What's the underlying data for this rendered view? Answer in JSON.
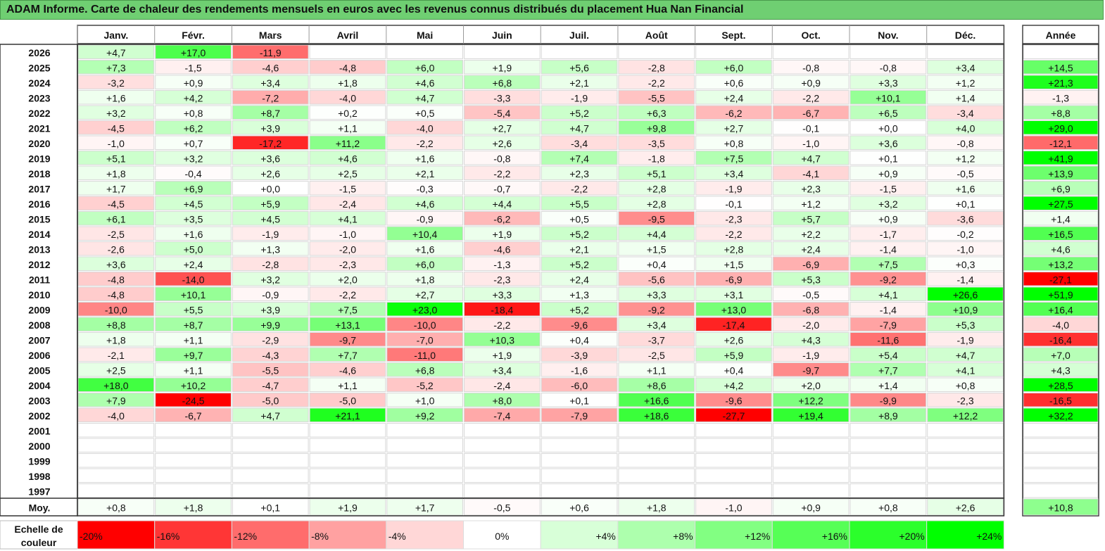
{
  "title": "ADAM Informe. Carte de chaleur des rendements mensuels en euros avec les revenus connus distribués du placement Hua Nan Financial",
  "chart_data": {
    "type": "heatmap",
    "title": "ADAM Informe. Carte de chaleur des rendements mensuels en euros avec les revenus connus distribués du placement Hua Nan Financial",
    "months": [
      "Janv.",
      "Févr.",
      "Mars",
      "Avril",
      "Mai",
      "Juin",
      "Juil.",
      "Août",
      "Sept.",
      "Oct.",
      "Nov.",
      "Déc."
    ],
    "year_header": "Année",
    "rows": [
      {
        "year": "2026",
        "values": [
          4.7,
          17.0,
          -11.9,
          null,
          null,
          null,
          null,
          null,
          null,
          null,
          null,
          null
        ],
        "annual": null
      },
      {
        "year": "2025",
        "values": [
          7.3,
          -1.5,
          -4.6,
          -4.8,
          6.0,
          1.9,
          5.6,
          -2.8,
          6.0,
          -0.8,
          -0.8,
          3.4
        ],
        "annual": 14.5
      },
      {
        "year": "2024",
        "values": [
          -3.2,
          0.9,
          3.4,
          1.8,
          4.6,
          6.8,
          2.1,
          -2.2,
          0.6,
          0.9,
          3.3,
          1.2
        ],
        "annual": 21.3
      },
      {
        "year": "2023",
        "values": [
          1.6,
          4.2,
          -7.2,
          -4.0,
          4.7,
          -3.3,
          -1.9,
          -5.5,
          2.4,
          -2.2,
          10.1,
          1.4
        ],
        "annual": -1.3
      },
      {
        "year": "2022",
        "values": [
          3.2,
          0.8,
          8.7,
          0.2,
          0.5,
          -5.4,
          5.2,
          6.3,
          -6.2,
          -6.7,
          6.5,
          -3.4
        ],
        "annual": 8.8
      },
      {
        "year": "2021",
        "values": [
          -4.5,
          6.2,
          3.9,
          1.1,
          -4.0,
          2.7,
          4.7,
          9.8,
          2.7,
          -0.1,
          0.0,
          4.0
        ],
        "annual": 29.0
      },
      {
        "year": "2020",
        "values": [
          -1.0,
          0.7,
          -17.2,
          11.2,
          -2.2,
          2.6,
          -3.4,
          -3.5,
          0.8,
          -1.0,
          3.6,
          -0.8
        ],
        "annual": -12.1
      },
      {
        "year": "2019",
        "values": [
          5.1,
          3.2,
          3.6,
          4.6,
          1.6,
          -0.8,
          7.4,
          -1.8,
          7.5,
          4.7,
          0.1,
          1.2
        ],
        "annual": 41.9
      },
      {
        "year": "2018",
        "values": [
          1.8,
          -0.4,
          2.6,
          2.5,
          2.1,
          -2.2,
          2.3,
          5.1,
          3.4,
          -4.1,
          0.9,
          -0.5
        ],
        "annual": 13.9
      },
      {
        "year": "2017",
        "values": [
          1.7,
          6.9,
          0.0,
          -1.5,
          -0.3,
          -0.7,
          -2.2,
          2.8,
          -1.9,
          2.3,
          -1.5,
          1.6
        ],
        "annual": 6.9
      },
      {
        "year": "2016",
        "values": [
          -4.5,
          4.5,
          5.9,
          -2.4,
          4.6,
          4.4,
          5.5,
          2.8,
          -0.1,
          1.2,
          3.2,
          0.1
        ],
        "annual": 27.5
      },
      {
        "year": "2015",
        "values": [
          6.1,
          3.5,
          4.5,
          4.1,
          -0.9,
          -6.2,
          0.5,
          -9.5,
          -2.3,
          5.7,
          0.9,
          -3.6
        ],
        "annual": 1.4
      },
      {
        "year": "2014",
        "values": [
          -2.5,
          1.6,
          -1.9,
          -1.0,
          10.4,
          1.9,
          5.2,
          4.4,
          -2.2,
          2.2,
          -1.7,
          -0.2
        ],
        "annual": 16.5
      },
      {
        "year": "2013",
        "values": [
          -2.6,
          5.0,
          1.3,
          -2.0,
          1.6,
          -4.6,
          2.1,
          1.5,
          2.8,
          2.4,
          -1.4,
          -1.0
        ],
        "annual": 4.6
      },
      {
        "year": "2012",
        "values": [
          3.6,
          2.4,
          -2.8,
          -2.3,
          6.0,
          -1.3,
          5.2,
          0.4,
          1.5,
          -6.9,
          7.5,
          0.3
        ],
        "annual": 13.2
      },
      {
        "year": "2011",
        "values": [
          -4.8,
          -14.0,
          3.2,
          2.0,
          1.8,
          -2.3,
          2.4,
          -5.6,
          -6.9,
          5.3,
          -9.2,
          -1.4
        ],
        "annual": -27.1
      },
      {
        "year": "2010",
        "values": [
          -4.8,
          10.1,
          -0.9,
          -2.2,
          2.7,
          3.3,
          1.3,
          3.3,
          3.1,
          -0.5,
          4.1,
          26.6
        ],
        "annual": 51.9
      },
      {
        "year": "2009",
        "values": [
          -10.0,
          5.5,
          3.9,
          7.5,
          23.0,
          -18.4,
          5.2,
          -9.2,
          13.0,
          -6.8,
          -1.4,
          10.9
        ],
        "annual": 16.4
      },
      {
        "year": "2008",
        "values": [
          8.8,
          8.7,
          9.9,
          13.1,
          -10.0,
          -2.2,
          -9.6,
          3.4,
          -17.4,
          -2.0,
          -7.9,
          5.3
        ],
        "annual": -4.0
      },
      {
        "year": "2007",
        "values": [
          1.8,
          1.1,
          -2.9,
          -9.7,
          -7.0,
          10.3,
          0.4,
          -3.7,
          2.6,
          4.3,
          -11.6,
          -1.9
        ],
        "annual": -16.4
      },
      {
        "year": "2006",
        "values": [
          -2.1,
          9.7,
          -4.3,
          7.7,
          -11.0,
          1.9,
          -3.9,
          -2.5,
          5.9,
          -1.9,
          5.4,
          4.7
        ],
        "annual": 7.0
      },
      {
        "year": "2005",
        "values": [
          2.5,
          1.1,
          -5.5,
          -4.6,
          6.8,
          3.4,
          -1.6,
          1.1,
          0.4,
          -9.7,
          7.7,
          4.1
        ],
        "annual": 4.3
      },
      {
        "year": "2004",
        "values": [
          18.0,
          10.2,
          -4.7,
          1.1,
          -5.2,
          -2.4,
          -6.0,
          8.6,
          4.2,
          2.0,
          1.4,
          0.8
        ],
        "annual": 28.5
      },
      {
        "year": "2003",
        "values": [
          7.9,
          -24.5,
          -5.0,
          -5.0,
          1.0,
          8.0,
          0.1,
          16.6,
          -9.6,
          12.2,
          -9.9,
          -2.3
        ],
        "annual": -16.5
      },
      {
        "year": "2002",
        "values": [
          -4.0,
          -6.7,
          4.7,
          21.1,
          9.2,
          -7.4,
          -7.9,
          18.6,
          -27.7,
          19.4,
          8.9,
          12.2
        ],
        "annual": 32.2
      },
      {
        "year": "2001",
        "values": [
          null,
          null,
          null,
          null,
          null,
          null,
          null,
          null,
          null,
          null,
          null,
          null
        ],
        "annual": null
      },
      {
        "year": "2000",
        "values": [
          null,
          null,
          null,
          null,
          null,
          null,
          null,
          null,
          null,
          null,
          null,
          null
        ],
        "annual": null
      },
      {
        "year": "1999",
        "values": [
          null,
          null,
          null,
          null,
          null,
          null,
          null,
          null,
          null,
          null,
          null,
          null
        ],
        "annual": null
      },
      {
        "year": "1998",
        "values": [
          null,
          null,
          null,
          null,
          null,
          null,
          null,
          null,
          null,
          null,
          null,
          null
        ],
        "annual": null
      },
      {
        "year": "1997",
        "values": [
          null,
          null,
          null,
          null,
          null,
          null,
          null,
          null,
          null,
          null,
          null,
          null
        ],
        "annual": null
      }
    ],
    "average": {
      "label": "Moy.",
      "values": [
        0.8,
        1.8,
        0.1,
        1.9,
        1.7,
        -0.5,
        0.6,
        1.8,
        -1.0,
        0.9,
        0.8,
        2.6
      ],
      "annual": 10.8
    },
    "scale": {
      "label_line1": "Echelle de",
      "label_line2": "couleur",
      "stops": [
        {
          "label": "-20%",
          "value": -20
        },
        {
          "label": "-16%",
          "value": -16
        },
        {
          "label": "-12%",
          "value": -12
        },
        {
          "label": "-8%",
          "value": -8
        },
        {
          "label": "-4%",
          "value": -4
        },
        {
          "label": "0%",
          "value": 0
        },
        {
          "label": "+4%",
          "value": 4
        },
        {
          "label": "+8%",
          "value": 8
        },
        {
          "label": "+12%",
          "value": 12
        },
        {
          "label": "+16%",
          "value": 16
        },
        {
          "label": "+20%",
          "value": 20
        },
        {
          "label": "+24%",
          "value": 24
        }
      ]
    }
  }
}
